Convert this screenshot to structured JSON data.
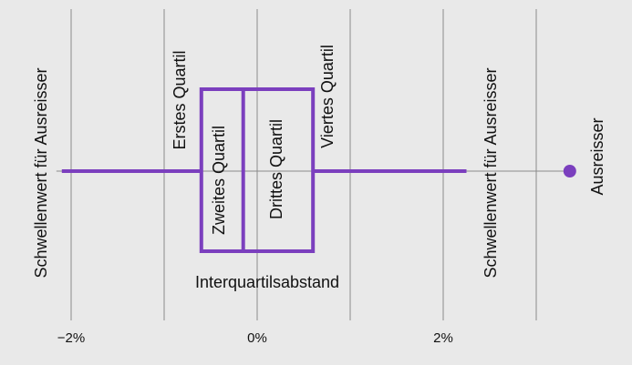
{
  "colors": {
    "background": "#e9e9e9",
    "accent": "#7b3fbe",
    "grid": "#8a8a8a",
    "text": "#111111"
  },
  "chart_data": {
    "type": "boxplot",
    "title": "",
    "xlabel": "",
    "ylabel": "",
    "x_unit": "%",
    "xlim": [
      -2.3,
      3.4
    ],
    "grid": true,
    "x_ticks": [
      {
        "value": -2,
        "label": "−2%"
      },
      {
        "value": 0,
        "label": "0%"
      },
      {
        "value": 2,
        "label": "2%"
      }
    ],
    "gridlines": [
      -2,
      -1,
      0,
      1,
      2,
      3
    ],
    "box": {
      "whisker_low": -2.1,
      "q1": -0.6,
      "median": -0.15,
      "q3": 0.6,
      "whisker_high": 2.25
    },
    "outliers": [
      3.4
    ],
    "annotations": {
      "lower_threshold": "Schwellenwert für Ausreisser",
      "q1": "Erstes Quartil",
      "q2": "Zweites Quartil",
      "q3": "Drittes Quartil",
      "q4": "Viertes Quartil",
      "upper_threshold": "Schwellenwert für Ausreisser",
      "outlier": "Ausreisser",
      "iqr": "Interquartilsabstand"
    }
  }
}
